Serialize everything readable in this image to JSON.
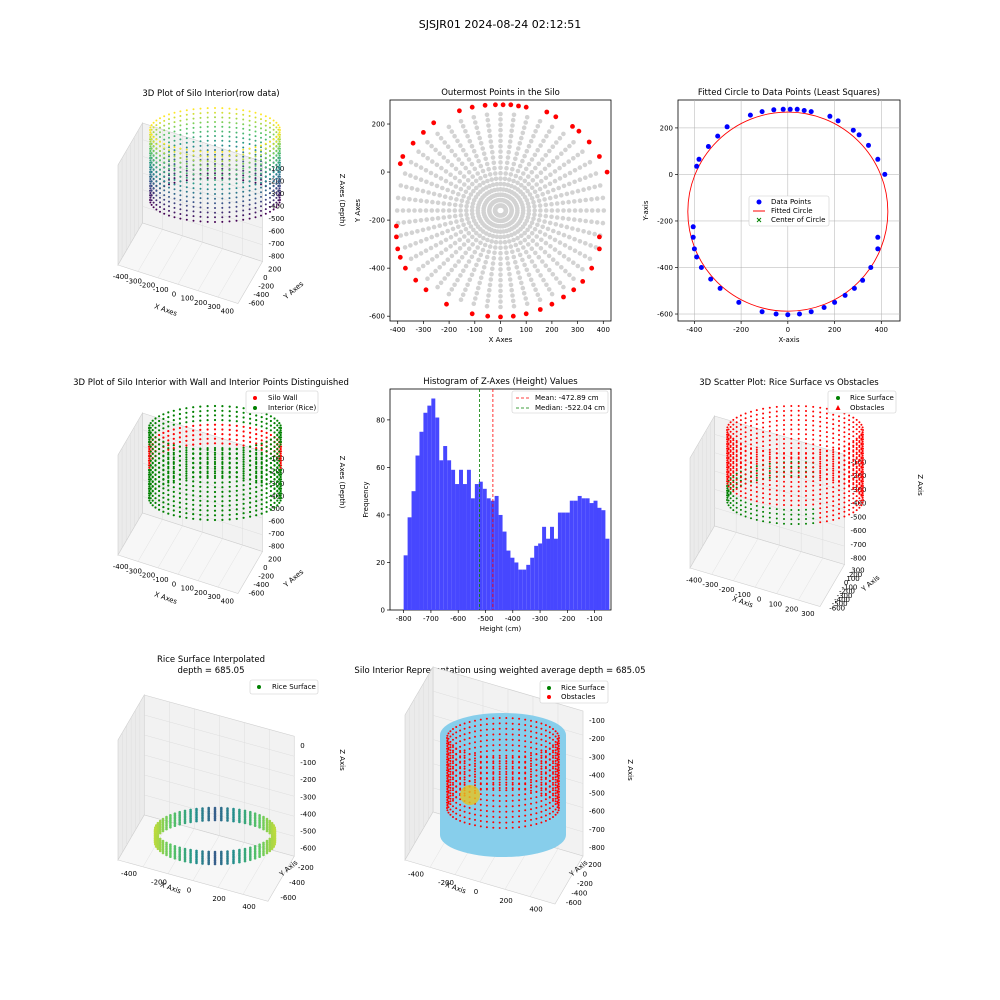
{
  "suptitle": "SJSJR01 2024-08-24 02:12:51",
  "colors": {
    "gray": "#d3d3d3",
    "red": "#ff0000",
    "blue": "#0000ff",
    "green": "#008000",
    "hist": "#4747ff",
    "sky": "#87ceeb",
    "viridis": [
      "#440154",
      "#3b528b",
      "#21918c",
      "#5ec962",
      "#fde725"
    ]
  },
  "chart_data": [
    {
      "id": "p1",
      "type": "scatter3d",
      "title": "3D Plot of Silo Interior(row data)",
      "xlabel": "X Axes",
      "ylabel": "Y Axes",
      "zlabel": "Z Axes (Depth)",
      "x_ticks": [
        "-400",
        "-300",
        "-200",
        "-100",
        "0",
        "100",
        "200",
        "300",
        "400"
      ],
      "y_ticks": [
        "200",
        "0",
        "-200",
        "-400",
        "-600"
      ],
      "z_ticks": [
        "-100",
        "-200",
        "-300",
        "-400",
        "-500",
        "-600",
        "-700",
        "-800"
      ],
      "colormap": "viridis"
    },
    {
      "id": "p2",
      "type": "scatter",
      "title": "Outermost Points in the Silo",
      "xlabel": "X Axes",
      "ylabel": "Y Axes",
      "xlim": [
        -430,
        430
      ],
      "ylim": [
        -620,
        300
      ],
      "x_ticks": [
        -400,
        -300,
        -200,
        -100,
        0,
        100,
        200,
        300,
        400
      ],
      "y_ticks": [
        200,
        0,
        -200,
        -400,
        -600
      ],
      "points": [
        [
          -390,
          35
        ],
        [
          -380,
          65
        ],
        [
          -340,
          120
        ],
        [
          -300,
          165
        ],
        [
          -260,
          205
        ],
        [
          -160,
          255
        ],
        [
          -110,
          270
        ],
        [
          -60,
          278
        ],
        [
          -20,
          280
        ],
        [
          10,
          280
        ],
        [
          40,
          280
        ],
        [
          70,
          275
        ],
        [
          100,
          270
        ],
        [
          180,
          250
        ],
        [
          215,
          230
        ],
        [
          280,
          190
        ],
        [
          305,
          170
        ],
        [
          345,
          125
        ],
        [
          385,
          65
        ],
        [
          415,
          0
        ],
        [
          385,
          -270
        ],
        [
          385,
          -320
        ],
        [
          355,
          -400
        ],
        [
          320,
          -455
        ],
        [
          285,
          -490
        ],
        [
          245,
          -520
        ],
        [
          200,
          -550
        ],
        [
          155,
          -572
        ],
        [
          100,
          -590
        ],
        [
          50,
          -600
        ],
        [
          0,
          -603
        ],
        [
          -50,
          -600
        ],
        [
          -110,
          -590
        ],
        [
          -210,
          -550
        ],
        [
          -290,
          -490
        ],
        [
          -330,
          -450
        ],
        [
          -370,
          -400
        ],
        [
          -390,
          -355
        ],
        [
          -400,
          -320
        ],
        [
          -405,
          -270
        ],
        [
          -405,
          -225
        ]
      ]
    },
    {
      "id": "p3",
      "type": "scatter",
      "title": "Fitted Circle to Data Points (Least Squares)",
      "xlabel": "X-axis",
      "ylabel": "Y-axis",
      "xlim": [
        -470,
        480
      ],
      "ylim": [
        -630,
        320
      ],
      "x_ticks": [
        -400,
        -200,
        0,
        200,
        400
      ],
      "y_ticks": [
        200,
        0,
        -200,
        -400,
        -600
      ],
      "legend": [
        "Data Points",
        "Fitted Circle",
        "Center of Circle"
      ],
      "circle": {
        "cx": 0,
        "cy": -160,
        "r": 428
      },
      "center": [
        0,
        -160
      ]
    },
    {
      "id": "p4",
      "type": "scatter3d",
      "title": "3D Plot of Silo Interior with Wall and Interior Points Distinguished",
      "xlabel": "X Axes",
      "ylabel": "Y Axes",
      "zlabel": "Z Axes (Depth)",
      "x_ticks": [
        "-400",
        "-300",
        "-200",
        "-100",
        "0",
        "100",
        "200",
        "300",
        "400"
      ],
      "y_ticks": [
        "200",
        "0",
        "-200",
        "-400",
        "-600"
      ],
      "z_ticks": [
        "-100",
        "-200",
        "-300",
        "-400",
        "-500",
        "-600",
        "-700",
        "-800"
      ],
      "legend": [
        "Silo Wall",
        "Interior (Rice)"
      ]
    },
    {
      "id": "p5",
      "type": "bar",
      "title": "Histogram of Z-Axes (Height) Values",
      "xlabel": "Height (cm)",
      "ylabel": "Frequency",
      "xlim": [
        -850,
        -40
      ],
      "ylim": [
        0,
        93
      ],
      "x_ticks": [
        -800,
        -700,
        -600,
        -500,
        -400,
        -300,
        -200,
        -100
      ],
      "y_ticks": [
        0,
        20,
        40,
        60,
        80
      ],
      "bin_start": -800,
      "bin_width": 14.5,
      "values": [
        23,
        39,
        50,
        65,
        75,
        83,
        86,
        89,
        81,
        63,
        69,
        63,
        59,
        53,
        59,
        53,
        59,
        47,
        53,
        54,
        51,
        47,
        46,
        48,
        40,
        33,
        25,
        22,
        20,
        17,
        17,
        19,
        22,
        27,
        28,
        35,
        30,
        35,
        30,
        41,
        41,
        41,
        46,
        46,
        48,
        47,
        47,
        45,
        46,
        43,
        42,
        30
      ],
      "mean": -472.89,
      "median": -522.04,
      "legend": [
        "Mean: -472.89 cm",
        "Median: -522.04 cm"
      ]
    },
    {
      "id": "p6",
      "type": "scatter3d",
      "title": "3D Scatter Plot: Rice Surface vs Obstacles",
      "xlabel": "X Axis",
      "ylabel": "Y Axis",
      "zlabel": "Z Axis",
      "x_ticks": [
        "-400",
        "-300",
        "-200",
        "-100",
        "0",
        "100",
        "200",
        "300"
      ],
      "y_ticks": [
        "300",
        "200",
        "100",
        "0",
        "-100",
        "-200",
        "-300",
        "-400",
        "-500",
        "-600"
      ],
      "z_ticks": [
        "-100",
        "-200",
        "-300",
        "-400",
        "-500",
        "-600",
        "-700",
        "-800"
      ],
      "legend": [
        "Rice Surface",
        "Obstacles"
      ]
    },
    {
      "id": "p7",
      "type": "surface3d",
      "title": "Rice Surface Interpolated",
      "subtitle": "depth = 685.05",
      "xlabel": "X Axis",
      "ylabel": "Y Axis",
      "zlabel": "Z Axis",
      "x_ticks": [
        "-400",
        "-200",
        "0",
        "200",
        "400"
      ],
      "y_ticks": [
        "-200",
        "-400",
        "-600"
      ],
      "z_ticks": [
        "0",
        "-100",
        "-200",
        "-300",
        "-400",
        "-500",
        "-600"
      ],
      "legend": [
        "Rice Surface"
      ]
    },
    {
      "id": "p8",
      "type": "scatter3d",
      "title": "Silo Interior Representation using weighted average depth = 685.05",
      "xlabel": "X Axis",
      "ylabel": "Y Axis",
      "zlabel": "Z Axis",
      "x_ticks": [
        "-400",
        "-200",
        "0",
        "200",
        "400"
      ],
      "y_ticks": [
        "200",
        "0",
        "-200",
        "-400",
        "-600"
      ],
      "z_ticks": [
        "-100",
        "-200",
        "-300",
        "-400",
        "-500",
        "-600",
        "-700",
        "-800"
      ],
      "legend": [
        "Rice Surface",
        "Obstacles"
      ]
    }
  ]
}
